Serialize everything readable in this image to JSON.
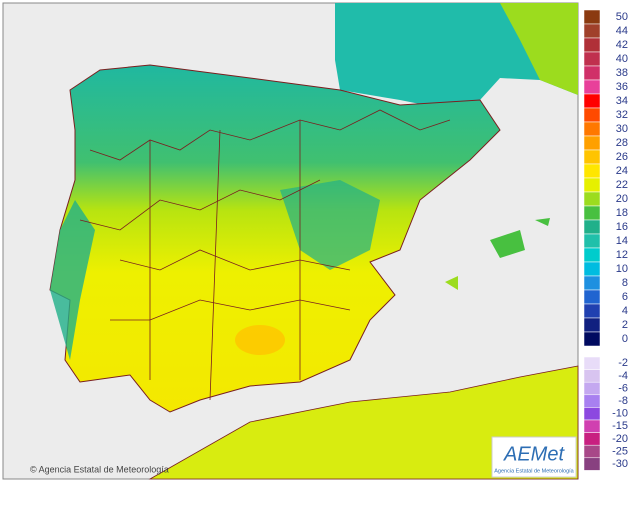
{
  "legend": {
    "upper": [
      {
        "label": 50,
        "color": "#8b3a10"
      },
      {
        "label": 44,
        "color": "#a0402a"
      },
      {
        "label": 42,
        "color": "#b03038"
      },
      {
        "label": 40,
        "color": "#c0304e"
      },
      {
        "label": 38,
        "color": "#d03068"
      },
      {
        "label": 36,
        "color": "#e8409a"
      },
      {
        "label": 34,
        "color": "#ff0000"
      },
      {
        "label": 32,
        "color": "#ff4a00"
      },
      {
        "label": 30,
        "color": "#ff7800"
      },
      {
        "label": 28,
        "color": "#ffa000"
      },
      {
        "label": 26,
        "color": "#ffc400"
      },
      {
        "label": 24,
        "color": "#ffe600"
      },
      {
        "label": 22,
        "color": "#e6f000"
      },
      {
        "label": 20,
        "color": "#9cdc1e"
      },
      {
        "label": 18,
        "color": "#48c040"
      },
      {
        "label": 16,
        "color": "#20b08a"
      },
      {
        "label": 14,
        "color": "#20c0aa"
      },
      {
        "label": 12,
        "color": "#00cccc"
      },
      {
        "label": 10,
        "color": "#00bce0"
      },
      {
        "label": 8,
        "color": "#1e90e0"
      },
      {
        "label": 6,
        "color": "#2064d0"
      },
      {
        "label": 4,
        "color": "#2040b0"
      },
      {
        "label": 2,
        "color": "#102080"
      },
      {
        "label": 0,
        "color": "#000a60"
      }
    ],
    "lower": [
      {
        "label": -2,
        "color": "#e8dcf8"
      },
      {
        "label": -4,
        "color": "#d8c4f0"
      },
      {
        "label": -6,
        "color": "#c4a8f0"
      },
      {
        "label": -8,
        "color": "#a880f0"
      },
      {
        "label": -10,
        "color": "#8c48e0"
      },
      {
        "label": -15,
        "color": "#d040b0"
      },
      {
        "label": -20,
        "color": "#c82080"
      },
      {
        "label": -25,
        "color": "#a84888"
      },
      {
        "label": -30,
        "color": "#884080"
      }
    ]
  },
  "credits": {
    "left": "© Agencia Estatal de Meteorología",
    "logo": "AEMet",
    "logo_caption": "Agencia Estatal de Meteorología"
  }
}
